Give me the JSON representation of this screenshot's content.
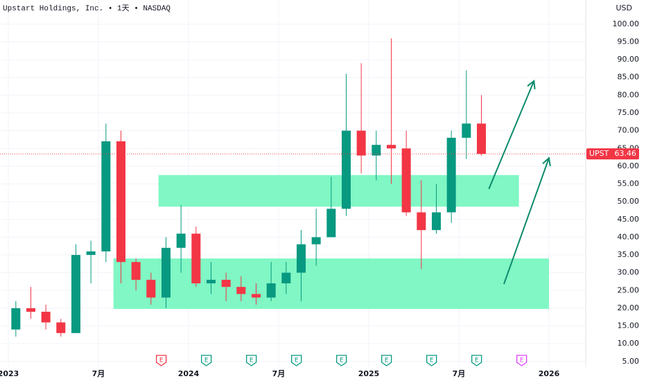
{
  "chart_data": {
    "type": "candlestick",
    "title": "Upstart Holdings, Inc. • 1天 • NASDAQ",
    "currency": "USD",
    "ticker": "UPST",
    "last_price": 63.46,
    "up_color": "#089981",
    "down_color": "#f23645",
    "x": [
      "2023-01",
      "2023-02",
      "2023-03",
      "2023-04",
      "2023-05",
      "2023-06",
      "2023-07",
      "2023-08",
      "2023-09",
      "2023-10",
      "2023-11",
      "2023-12",
      "2024-01",
      "2024-02",
      "2024-03",
      "2024-04",
      "2024-05",
      "2024-06",
      "2024-07",
      "2024-08",
      "2024-09",
      "2024-10",
      "2024-11",
      "2024-12",
      "2025-01",
      "2025-02",
      "2025-03",
      "2025-04",
      "2025-05",
      "2025-06",
      "2025-07",
      "2025-08"
    ],
    "open": [
      14,
      20,
      19,
      16,
      13,
      35,
      36,
      67,
      33,
      28,
      23,
      37,
      41,
      27,
      28,
      26,
      24,
      23,
      27,
      30,
      38,
      40,
      48,
      70,
      63,
      66,
      65,
      47,
      42,
      47,
      68,
      72
    ],
    "high": [
      22,
      26,
      21,
      17,
      38,
      39,
      72,
      70,
      34,
      30,
      40,
      49,
      43,
      33,
      30,
      29,
      27,
      33,
      33,
      42,
      48,
      57,
      86,
      89,
      70,
      96,
      70,
      56,
      55,
      70,
      87,
      80
    ],
    "low": [
      12,
      17,
      14,
      12,
      13,
      27,
      33,
      27,
      25,
      21,
      20,
      30,
      26,
      24,
      22,
      22,
      21,
      22,
      24,
      22,
      32,
      40,
      46,
      58,
      56,
      55,
      46,
      31,
      41,
      44,
      62,
      63
    ],
    "close": [
      20,
      19,
      16,
      13,
      35,
      36,
      67,
      33,
      28,
      23,
      37,
      41,
      27,
      28,
      26,
      24,
      23,
      27,
      30,
      38,
      40,
      48,
      70,
      63,
      66,
      65,
      47,
      42,
      47,
      68,
      72,
      63.46
    ],
    "ylim": [
      3.4,
      106.8
    ],
    "yticks": [
      {
        "value": 5,
        "label": "5.00"
      },
      {
        "value": 10,
        "label": "10.00"
      },
      {
        "value": 15,
        "label": "15.00"
      },
      {
        "value": 20,
        "label": "20.00"
      },
      {
        "value": 25,
        "label": "25.00"
      },
      {
        "value": 30,
        "label": "30.00"
      },
      {
        "value": 35,
        "label": "35.00"
      },
      {
        "value": 40,
        "label": "40.00"
      },
      {
        "value": 45,
        "label": "45.00"
      },
      {
        "value": 50,
        "label": "50.00"
      },
      {
        "value": 55,
        "label": "55.00"
      },
      {
        "value": 60,
        "label": "60.00"
      },
      {
        "value": 65,
        "label": "65.00"
      },
      {
        "value": 70,
        "label": "70.00"
      },
      {
        "value": 75,
        "label": "75.00"
      },
      {
        "value": 80,
        "label": "80.00"
      },
      {
        "value": 85,
        "label": "85.00"
      },
      {
        "value": 90,
        "label": "90.00"
      },
      {
        "value": 95,
        "label": "95.00"
      },
      {
        "value": 100,
        "label": "100.00"
      }
    ],
    "xticks": [
      {
        "value": "2023-01",
        "label": "2023"
      },
      {
        "value": "2023-07",
        "label": "7月"
      },
      {
        "value": "2024-01",
        "label": "2024"
      },
      {
        "value": "2024-07",
        "label": "7月"
      },
      {
        "value": "2025-01",
        "label": "2025"
      },
      {
        "value": "2025-07",
        "label": "7月"
      },
      {
        "value": "2026-01",
        "label": "2026"
      }
    ],
    "grid": true,
    "zones": [
      {
        "start": "2023-11",
        "end": "2025-11",
        "low": 48.6,
        "high": 57.5,
        "color": "#80f7c4"
      },
      {
        "start": "2023-08",
        "end": "2026-01",
        "low": 19.8,
        "high": 34,
        "color": "#80f7c4"
      }
    ],
    "arrows": [
      {
        "from": {
          "x": "2025-09",
          "y": 53.6
        },
        "to": {
          "x": "2025-12",
          "y": 84
        },
        "color": "#0b8a6b"
      },
      {
        "from": {
          "x": "2025-10",
          "y": 26.8
        },
        "to": {
          "x": "2026-01",
          "y": 62.3
        },
        "color": "#0b8a6b"
      }
    ],
    "events": [
      {
        "x": "2023-11",
        "label": "E",
        "color": "#f23645"
      },
      {
        "x": "2024-02",
        "label": "E",
        "color": "#089981"
      },
      {
        "x": "2024-05",
        "label": "E",
        "color": "#089981"
      },
      {
        "x": "2024-08",
        "label": "E",
        "color": "#089981"
      },
      {
        "x": "2024-11",
        "label": "E",
        "color": "#089981"
      },
      {
        "x": "2025-02",
        "label": "E",
        "color": "#089981"
      },
      {
        "x": "2025-05",
        "label": "E",
        "color": "#089981"
      },
      {
        "x": "2025-08",
        "label": "E",
        "color": "#089981"
      },
      {
        "x": "2025-11",
        "label": "E",
        "color": "#e040fb"
      }
    ]
  }
}
